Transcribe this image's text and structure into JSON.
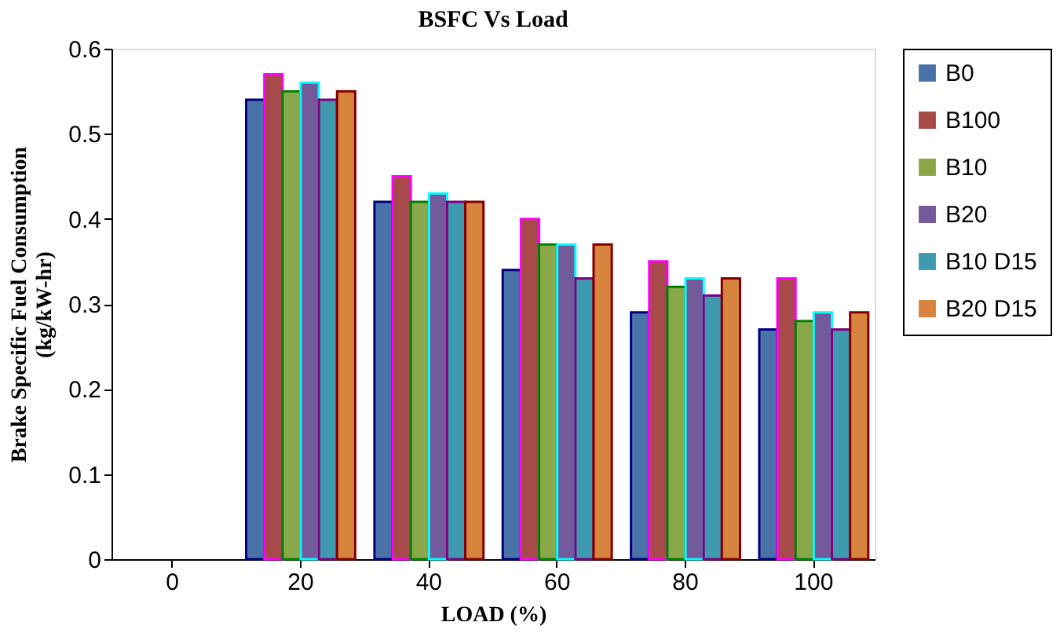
{
  "chart_data": {
    "type": "bar",
    "title": "BSFC Vs Load",
    "xlabel": "LOAD (%)",
    "ylabel": "Brake Specific Fuel Consumption (kg/kW-hr)",
    "categories": [
      "0",
      "20",
      "40",
      "60",
      "80",
      "100"
    ],
    "series": [
      {
        "name": "B0",
        "color": "#4a72a8",
        "values": [
          null,
          0.54,
          0.42,
          0.34,
          0.29,
          0.27
        ]
      },
      {
        "name": "B100",
        "color": "#a84a4a",
        "values": [
          null,
          0.57,
          0.45,
          0.4,
          0.35,
          0.33
        ]
      },
      {
        "name": "B10",
        "color": "#8aa84a",
        "values": [
          null,
          0.55,
          0.42,
          0.37,
          0.32,
          0.28
        ]
      },
      {
        "name": "B20",
        "color": "#735a9a",
        "values": [
          null,
          0.56,
          0.43,
          0.37,
          0.33,
          0.29
        ]
      },
      {
        "name": "B10 D15",
        "color": "#3f9ab0",
        "values": [
          null,
          0.54,
          0.42,
          0.33,
          0.31,
          0.27
        ]
      },
      {
        "name": "B20 D15",
        "color": "#d9843e",
        "values": [
          null,
          0.55,
          0.42,
          0.37,
          0.33,
          0.29
        ]
      }
    ],
    "ylim": [
      0,
      0.6
    ],
    "yticks": [
      0,
      0.1,
      0.2,
      0.3,
      0.4,
      0.5,
      0.6
    ],
    "grid": false,
    "legend": "right"
  }
}
